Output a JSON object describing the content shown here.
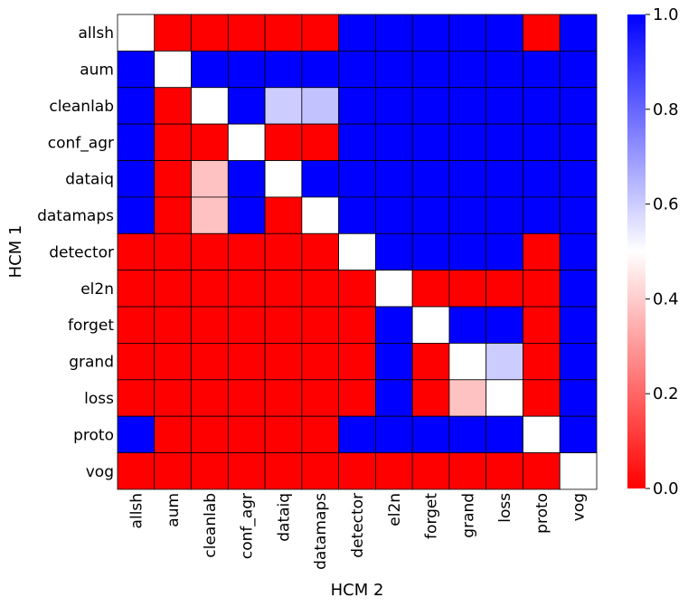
{
  "chart_data": {
    "type": "heatmap",
    "xlabel": "HCM 2",
    "ylabel": "HCM 1",
    "x_categories": [
      "allsh",
      "aum",
      "cleanlab",
      "conf_agr",
      "dataiq",
      "datamaps",
      "detector",
      "el2n",
      "forget",
      "grand",
      "loss",
      "proto",
      "vog"
    ],
    "y_categories": [
      "allsh",
      "aum",
      "cleanlab",
      "conf_agr",
      "dataiq",
      "datamaps",
      "detector",
      "el2n",
      "forget",
      "grand",
      "loss",
      "proto",
      "vog"
    ],
    "values": [
      [
        0.5,
        0,
        0,
        0,
        0,
        0,
        1,
        1,
        1,
        1,
        1,
        0,
        1
      ],
      [
        1,
        0.5,
        1,
        1,
        1,
        1,
        1,
        1,
        1,
        1,
        1,
        1,
        1
      ],
      [
        1,
        0,
        0.5,
        1,
        0.6,
        0.62,
        1,
        1,
        1,
        1,
        1,
        1,
        1
      ],
      [
        1,
        0,
        0,
        0.5,
        0,
        0,
        1,
        1,
        1,
        1,
        1,
        1,
        1
      ],
      [
        1,
        0,
        0.38,
        1,
        0.5,
        1,
        1,
        1,
        1,
        1,
        1,
        1,
        1
      ],
      [
        1,
        0,
        0.38,
        1,
        0,
        0.5,
        1,
        1,
        1,
        1,
        1,
        1,
        1
      ],
      [
        0,
        0,
        0,
        0,
        0,
        0,
        0.5,
        1,
        1,
        1,
        1,
        0,
        1
      ],
      [
        0,
        0,
        0,
        0,
        0,
        0,
        0,
        0.5,
        0,
        0,
        0,
        0,
        1
      ],
      [
        0,
        0,
        0,
        0,
        0,
        0,
        0,
        1,
        0.5,
        1,
        1,
        0,
        1
      ],
      [
        0,
        0,
        0,
        0,
        0,
        0,
        0,
        1,
        0,
        0.5,
        0.6,
        0,
        1
      ],
      [
        0,
        0,
        0,
        0,
        0,
        0,
        0,
        1,
        0,
        0.38,
        0.5,
        0,
        1
      ],
      [
        1,
        0,
        0,
        0,
        0,
        0,
        1,
        1,
        1,
        1,
        1,
        0.5,
        1
      ],
      [
        0,
        0,
        0,
        0,
        0,
        0,
        0,
        0,
        0,
        0,
        0,
        0,
        0.5
      ]
    ],
    "colormap": {
      "low": "#ff0000",
      "mid": "#ffffff",
      "high": "#0000ff"
    },
    "colorbar": {
      "range": [
        0.0,
        1.0
      ],
      "ticks": [
        "0.0",
        "0.2",
        "0.4",
        "0.6",
        "0.8",
        "1.0"
      ]
    }
  }
}
